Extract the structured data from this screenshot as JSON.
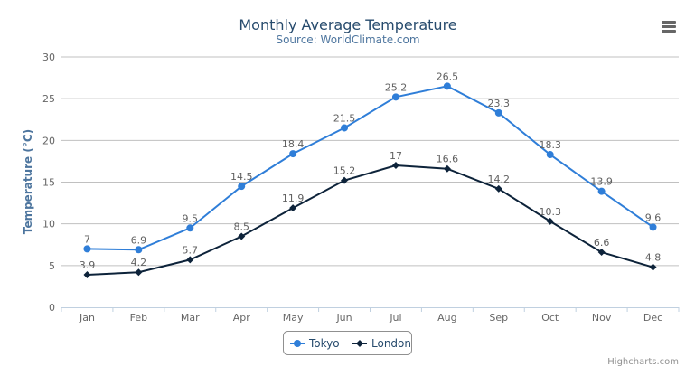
{
  "chart_data": {
    "type": "line",
    "title": "Monthly Average Temperature",
    "subtitle": "Source: WorldClimate.com",
    "xlabel": "",
    "ylabel": "Temperature (°C)",
    "categories": [
      "Jan",
      "Feb",
      "Mar",
      "Apr",
      "May",
      "Jun",
      "Jul",
      "Aug",
      "Sep",
      "Oct",
      "Nov",
      "Dec"
    ],
    "ylim": [
      0,
      30
    ],
    "yticks": [
      0,
      5,
      10,
      15,
      20,
      25,
      30
    ],
    "grid": true,
    "legend_position": "bottom",
    "data_labels": true,
    "series": [
      {
        "name": "Tokyo",
        "color": "#2f7ed8",
        "marker": "circle",
        "values": [
          7.0,
          6.9,
          9.5,
          14.5,
          18.4,
          21.5,
          25.2,
          26.5,
          23.3,
          18.3,
          13.9,
          9.6
        ]
      },
      {
        "name": "London",
        "color": "#0d233a",
        "marker": "diamond",
        "values": [
          3.9,
          4.2,
          5.7,
          8.5,
          11.9,
          15.2,
          17.0,
          16.6,
          14.2,
          10.3,
          6.6,
          4.8
        ]
      }
    ]
  },
  "credits": "Highcharts.com",
  "menu_icon": "hamburger-menu-icon"
}
